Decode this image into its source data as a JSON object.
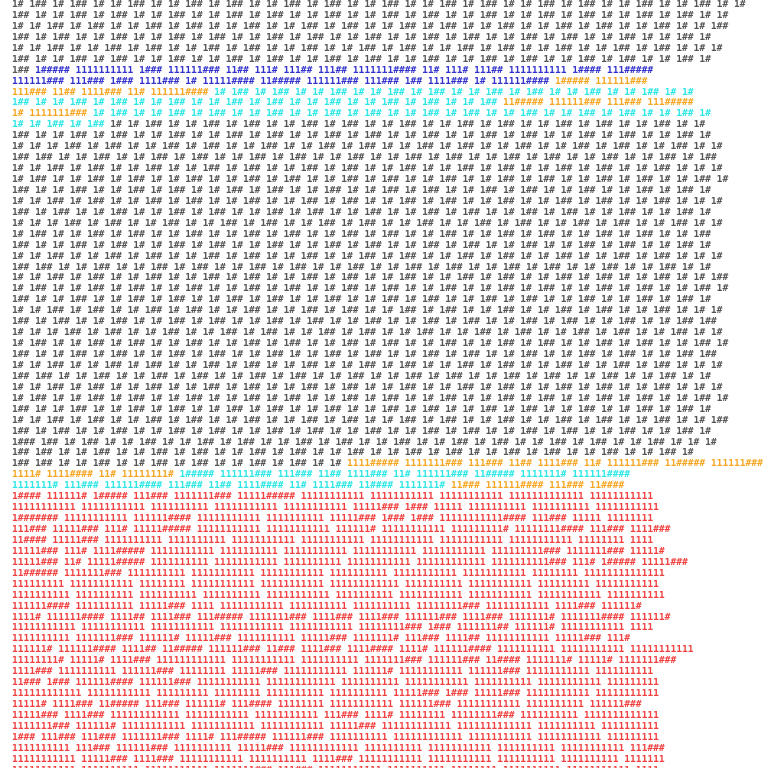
{
  "lines": [
    [
      {
        "text": "1# 1## 1# 1## 1# 1# 1## 1# 1# 1## 1# 1## 1# 1# 1## 1# 1## 1# 1# 1## 1# 1# 1## 1# 1## 1# 1# 1## 1# 1## 1# 1# 1## 1# 1# 1## 1# 1#",
        "color": "#555555"
      }
    ],
    [
      {
        "text": "1## 1# 1# 1## 1# 1## 1# 1# 1## 1# 1# 1## 1# 1## 1# 1# 1## 1# 1# 1## 1# 1## 1# 1# 1## 1# 1# 1## 1# 1## 1# 1# 1## 1# 1## 1# 1#",
        "color": "#555555"
      }
    ],
    [
      {
        "text": "1# 1# 1## 1# 1## 1# 1# 1## 1# 1## 1# 1# 1## 1# 1# 1## 1# 1## 1# 1# 1## 1# 1## 1# 1# 1## 1# 1# 1## 1# 1## 1# 1# 1## 1# 1# 1##",
        "color": "#555555"
      }
    ],
    [
      {
        "text": "1## 1# 1## 1# 1# 1## 1# 1# 1## 1# 1## 1# 1# 1## 1# 1## 1# 1# 1## 1# 1# 1## 1# 1## 1# 1# 1## 1# 1## 1# 1# 1## 1# 1# 1## 1#",
        "color": "#555555"
      }
    ],
    [
      {
        "text": "1# 1# 1## 1# 1# 1## 1# 1## 1# 1# 1## 1# 1## 1# 1# 1## 1# 1# 1## 1# 1## 1# 1# 1## 1# 1## 1# 1# 1## 1# 1# 1## 1# 1## 1# 1# 1#",
        "color": "#555555"
      }
    ],
    [
      {
        "text": "1## 1# 1# 1## 1# 1## 1# 1# 1## 1# 1# 1## 1# 1## 1# 1# 1## 1# 1## 1# 1# 1## 1# 1# 1## 1# 1## 1# 1# 1## 1# 1## 1# 1# 1## 1#",
        "color": "#555555"
      }
    ],
    [
      {
        "text": "1## ",
        "color": "#555555"
      },
      {
        "text": "1##### 1111111111 1### 111111### 11## 111# 111## 111## 1111111#### 11# 111# 111## 1111111111 1#### 111#####",
        "color": "#3333cc"
      }
    ],
    [
      {
        "text": "111111### 111### 1### 1111### 1# 11111#### 11##### 111111### 111### 1## 1111### 1# 111111#### ",
        "color": "#3333cc"
      },
      {
        "text": "1##### 111111###",
        "color": "#f5a623"
      }
    ],
    [
      {
        "text": "111### 11## 1111### 11# 111111#### ",
        "color": "#f5a623"
      },
      {
        "text": "1# 1## 1# 1## 1# 1# 1## 1# 1# 1## 1# 1## 1# 1# 1## 1# 1## 1# 1# 1## 1# 1# 1## 1# 1#",
        "color": "#2ee6e6"
      }
    ],
    [
      {
        "text": "1## 1# 1# 1## 1# 1## 1# 1# 1## 1# 1# 1## 1# 1## 1# 1# 1## 1# 1# 1## 1# 1## 1# 1# 1## ",
        "color": "#2ee6e6"
      },
      {
        "text": "11##### 111111### 111### 111#####",
        "color": "#f5a623"
      }
    ],
    [
      {
        "text": "1# 1111111### ",
        "color": "#f5a623"
      },
      {
        "text": "1# 1## 1# 1# 1## 1# 1## 1# 1# 1## 1# 1# 1## 1# 1## 1# 1# 1## 1# 1## 1# 1# 1## 1# 1# 1## 1# 1## 1# 1# 1## 1#",
        "color": "#2ee6e6"
      }
    ],
    [
      {
        "text": "1# 1# 1## 1# 1## ",
        "color": "#2ee6e6"
      },
      {
        "text": "1# 1# 1## 1# 1# 1## 1# 1## 1# 1# 1## 1# 1## 1# 1# 1## 1# 1# 1## 1# 1## 1# 1# 1## 1# 1## 1# 1# 1## 1# 1#",
        "color": "#555555"
      }
    ],
    [
      {
        "text": "1## 1# 1# 1## 1# 1## 1# 1# 1## 1# 1# 1## 1# 1## 1# 1# 1## 1# 1## 1# 1# 1## 1# 1# 1## 1# 1## 1# 1# 1## 1# 1## 1# 1# 1## 1#",
        "color": "#555555"
      }
    ],
    [
      {
        "text": "1# 1# 1# 1## 1# 1## 1# 1# 1## 1# 1## 1# 1# 1## 1# 1# 1## 1# 1## 1# 1# 1## 1# 1## 1# 1# 1## 1# 1# 1## 1# 1## 1# 1# 1## 1# 1#",
        "color": "#555555"
      }
    ],
    [
      {
        "text": "1## 1## 1# 1# 1## 1# 1# 1## 1# 1## 1# 1# 1## 1# 1## 1# 1# 1## 1# 1# 1## 1# 1## 1# 1# 1## 1# 1## 1# 1# 1## 1# 1# 1## 1# 1##",
        "color": "#555555"
      }
    ],
    [
      {
        "text": "1# 1# 1## 1# 1## 1# 1# 1## 1# 1# 1## 1# 1## 1# 1# 1## 1# 1## 1# 1# 1## 1# 1# 1## 1# 1## 1# 1# 1## 1# 1## 1# 1# 1## 1# 1# 1#",
        "color": "#555555"
      }
    ],
    [
      {
        "text": "1# 1## 1# 1# 1## 1# 1## 1# 1# 1## 1# 1# 1## 1# 1## 1# 1# 1## 1# 1## 1# 1# 1## 1# 1# 1## 1# 1## 1# 1# 1## 1# 1## 1# 1# 1## 1#",
        "color": "#555555"
      }
    ],
    [
      {
        "text": "1## 1# 1# 1## 1# 1# 1## 1# 1## 1# 1# 1## 1# 1## 1# 1# 1## 1# 1# 1## 1# 1## 1# 1# 1## 1# 1## 1# 1# 1## 1# 1# 1## 1# 1## 1#",
        "color": "#555555"
      }
    ],
    [
      {
        "text": "1# 1# 1## 1# 1## 1# 1# 1## 1# 1## 1# 1# 1## 1# 1# 1## 1# 1## 1# 1# 1## 1# 1## 1# 1# 1## 1# 1# 1## 1# 1## 1# 1# 1## 1# 1# 1#",
        "color": "#555555"
      }
    ],
    [
      {
        "text": "1## 1# 1## 1# 1# 1## 1# 1# 1## 1# 1## 1# 1# 1## 1# 1## 1# 1# 1## 1# 1# 1## 1# 1## 1# 1# 1## 1# 1## 1# 1# 1## 1# 1# 1## 1#",
        "color": "#555555"
      }
    ],
    [
      {
        "text": "1# 1# 1# 1## 1# 1## 1# 1# 1## 1# 1# 1## 1# 1## 1# 1# 1## 1# 1## 1# 1# 1## 1# 1# 1## 1# 1## 1# 1# 1## 1# 1## 1# 1# 1## 1# 1#",
        "color": "#555555"
      }
    ],
    [
      {
        "text": "1# 1## 1# 1# 1## 1# 1## 1# 1# 1## 1# 1# 1## 1# 1## 1# 1# 1## 1# 1## 1# 1# 1## 1# 1# 1## 1# 1## 1# 1# 1## 1# 1## 1# 1# 1##",
        "color": "#555555"
      }
    ],
    [
      {
        "text": "1## 1# 1# 1## 1# 1## 1# 1# 1## 1# 1## 1# 1# 1## 1# 1# 1## 1# 1## 1# 1# 1## 1# 1## 1# 1# 1## 1# 1# 1## 1# 1## 1# 1# 1## 1#",
        "color": "#555555"
      }
    ],
    [
      {
        "text": "1# 1# 1## 1# 1# 1## 1# 1## 1# 1# 1## 1# 1## 1# 1# 1## 1# 1# 1## 1# 1## 1# 1# 1## 1# 1## 1# 1# 1## 1# 1# 1## 1# 1## 1# 1# 1#",
        "color": "#555555"
      }
    ],
    [
      {
        "text": "1## 1## 1# 1# 1## 1# 1# 1## 1# 1## 1# 1# 1## 1# 1## 1# 1# 1## 1# 1# 1## 1# 1## 1# 1# 1## 1# 1## 1# 1# 1## 1# 1# 1## 1# 1#",
        "color": "#555555"
      }
    ],
    [
      {
        "text": "1# 1# 1## 1# 1## 1# 1# 1## 1# 1# 1## 1# 1## 1# 1# 1## 1# 1## 1# 1# 1## 1# 1# 1## 1# 1## 1# 1# 1## 1# 1## 1# 1# 1## 1# 1# 1##",
        "color": "#555555"
      }
    ],
    [
      {
        "text": "1# 1## 1# 1# 1## 1# 1## 1# 1# 1## 1# 1# 1## 1# 1## 1# 1# 1## 1# 1## 1# 1# 1## 1# 1# 1## 1# 1## 1# 1# 1## 1# 1## 1# 1# 1## 1#",
        "color": "#555555"
      }
    ],
    [
      {
        "text": "1## 1# 1# 1## 1# 1# 1## 1# 1## 1# 1# 1## 1# 1## 1# 1# 1## 1# 1# 1## 1# 1## 1# 1# 1## 1# 1## 1# 1# 1## 1# 1# 1## 1# 1## 1#",
        "color": "#555555"
      }
    ],
    [
      {
        "text": "1# 1# 1## 1# 1## 1# 1# 1## 1# 1## 1# 1# 1## 1# 1# 1## 1# 1## 1# 1# 1## 1# 1## 1# 1# 1## 1# 1# 1## 1# 1## 1# 1# 1## 1# 1# 1#",
        "color": "#555555"
      }
    ],
    [
      {
        "text": "1## 1# 1## 1# 1# 1## 1# 1# 1## 1# 1## 1# 1# 1## 1# 1## 1# 1# 1## 1# 1# 1## 1# 1## 1# 1# 1## 1# 1## 1# 1# 1## 1# 1# 1## 1##",
        "color": "#555555"
      }
    ],
    [
      {
        "text": "1# 1# 1# 1## 1# 1## 1# 1# 1## 1# 1# 1## 1# 1## 1# 1# 1## 1# 1## 1# 1# 1## 1# 1# 1## 1# 1## 1# 1# 1## 1# 1## 1# 1# 1## 1# 1#",
        "color": "#555555"
      }
    ],
    [
      {
        "text": "1# 1## 1# 1# 1## 1# 1## 1# 1# 1## 1# 1# 1## 1# 1## 1# 1# 1## 1# 1## 1# 1# 1## 1# 1# 1## 1# 1## 1# 1# 1## 1# 1## 1# 1# 1## 1#",
        "color": "#555555"
      }
    ],
    [
      {
        "text": "1## 1# 1# 1## 1# 1## 1# 1# 1## 1# 1## 1# 1# 1## 1# 1# 1## 1# 1## 1# 1# 1## 1# 1## 1# 1# 1## 1# 1# 1## 1# 1## 1# 1# 1## 1##",
        "color": "#555555"
      }
    ],
    [
      {
        "text": "1# 1# 1## 1# 1# 1## 1# 1## 1# 1# 1## 1# 1## 1# 1# 1## 1# 1# 1## 1# 1## 1# 1# 1## 1# 1## 1# 1# 1## 1# 1# 1## 1# 1## 1# 1# 1#",
        "color": "#555555"
      }
    ],
    [
      {
        "text": "1## 1## 1# 1# 1## 1# 1# 1## 1# 1## 1# 1# 1## 1# 1## 1# 1# 1## 1# 1# 1## 1# 1## 1# 1# 1## 1# 1## 1# 1# 1## 1# 1# 1## 1# 1#",
        "color": "#555555"
      }
    ],
    [
      {
        "text": "1# 1# 1## 1# 1## 1# 1# 1## 1# 1# 1## 1# 1## 1# 1# 1## 1# 1## 1# 1# 1## 1# 1# 1## 1# 1## 1# 1# 1## 1# 1## 1# 1# 1## 1# 1# 1#",
        "color": "#555555"
      }
    ],
    [
      {
        "text": "1# 1## 1# 1# 1## 1# 1## 1# 1# 1## 1# 1# 1## 1# 1## 1# 1# 1## 1# 1## 1# 1# 1## 1# 1# 1## 1# 1## 1# 1# 1## 1# 1## 1# 1# 1## 1#",
        "color": "#555555"
      }
    ],
    [
      {
        "text": "1## 1# 1# 1## 1# 1# 1## 1# 1## 1# 1# 1## 1# 1## 1# 1# 1## 1# 1# 1## 1# 1## 1# 1# 1## 1# 1## 1# 1# 1## 1# 1# 1## 1# 1## 1#",
        "color": "#555555"
      }
    ],
    [
      {
        "text": "1# 1# 1## 1# 1## 1# 1# 1## 1# 1## 1# 1# 1## 1# 1# 1## 1# 1## 1# 1# 1## 1# 1## 1# 1# 1## 1# 1# 1## 1# 1## 1# 1# 1## 1# 1# 1##",
        "color": "#555555"
      }
    ],
    [
      {
        "text": "1## 1# 1## 1# 1# 1## 1# 1# 1## 1# 1## 1# 1# 1## 1# 1## 1# 1# 1## 1# 1# 1## 1# 1## 1# 1# 1## 1# 1## 1# 1# 1## 1# 1# 1## 1#",
        "color": "#555555"
      }
    ],
    [
      {
        "text": "1### 1## 1# 1## 1# 1# 1## 1# 1# 1## 1# 1## 1# 1# 1## 1# 1## 1# 1# 1## 1# 1# 1## 1# 1## 1# 1# 1## 1# 1## 1# 1# 1## 1# 1# 1#",
        "color": "#555555"
      }
    ],
    [
      {
        "text": "1## 1## 1# 1# 1## 1# 1# 1## 1# 1## 1# 1# 1## 1# 1## 1# 1# 1## 1# 1# 1## 1# 1## 1# 1# 1## 1# 1## 1# 1# 1## 1# 1# 1## 1#",
        "color": "#555555"
      }
    ],
    [
      {
        "text": "1## 1## 1# 1# 1## 1# 1# 1## 1# 1## 1# 1# 1## 1# 1## 1# 1# ",
        "color": "#555555"
      },
      {
        "text": "1111##### 1111111### 111### 11## 1111### 11# 111111### 11##### 111111### 111###",
        "color": "#f5a623"
      }
    ],
    [
      {
        "text": "1111# 1111#### 11# 11111111# ",
        "color": "#f5a623"
      },
      {
        "text": "1##### 111111### 111### 11## 1111### 11# 111111### 11##### 1111111# 111111####",
        "color": "#2ee6e6"
      }
    ],
    [
      {
        "text": "1111111# 111### 111111#### 111### 11## 1111#### 11# 1111### 11#### 1111111# ",
        "color": "#2ee6e6"
      },
      {
        "text": "11### 111111#### 111### 11####",
        "color": "#f5a623"
      }
    ],
    [
      {
        "text": "1#### 111111# 1##### 111### 1111111### 11111##### 11111111111 11111111111 11111111111 1111111111111 11111111111",
        "color": "#f04040"
      }
    ],
    [
      {
        "text": "11111111111 11111111111 1111111111 11111111111 11111111111 11111### 1### 11111 1111111111 1111111111 11111111111",
        "color": "#f04040"
      }
    ],
    [
      {
        "text": "1####### 11111111111 111111#### 11111111111 1111111111 11111### 1### 1### 11111111111#### 111### 11111 11111111",
        "color": "#f04040"
      }
    ],
    [
      {
        "text": "111### 11111### 111# 11111##### 11111111111 11111111111 111111# 11111111111 111111111# 11111111#### 111### 1111###",
        "color": "#f04040"
      }
    ],
    [
      {
        "text": "11#### 11111### 1111111111 1111111111 11111111111 11111111111 11111111111 11111111111 11111111111 11111111 1111",
        "color": "#f04040"
      }
    ],
    [
      {
        "text": "11111### 111# 1111##### 11111111111 1111111111 11111111111 11111111111 11111111111 111111111### 1111111### 11111#",
        "color": "#f04040"
      }
    ],
    [
      {
        "text": "11111### 11# 11111##### 1111111111 11111111111 1111111111 11111111111 111111111111 1111111111### 111# 1##### 11111###",
        "color": "#f04040"
      }
    ],
    [
      {
        "text": "11###### 1111111### 1111111111 11111111111 11111111111 1111111111 11111111111 11111111111 11111111 11111111111111",
        "color": "#f04040"
      }
    ],
    [
      {
        "text": "111111111 11111111111 11111111 11111111111 11111111111 111111111111 1111111111 11111111111 111111111 11111111111",
        "color": "#f04040"
      }
    ],
    [
      {
        "text": "1111111111 1111111111 1111111111 1111111111 11111111111 1111111111 11111111111 11111111111 11111111111 1111111111",
        "color": "#f04040"
      }
    ],
    [
      {
        "text": "111111#### 1111111111 11111### 1111 11111111111 1111111111 1111111111 11111111### 11111111111 1111### 111111#",
        "color": "#f04040"
      }
    ],
    [
      {
        "text": "1111# 111111#### 1111## 1111### 111##### 1111111### 1111### 1111### 111111### 1111### 1111111# 1111111#### 111111#",
        "color": "#f04040"
      }
    ],
    [
      {
        "text": "11111111111 11111111111 11111111111 11111111111 11111111111 11111111### 1### 1111111## 111111# 11111111111 1111",
        "color": "#f04040"
      }
    ],
    [
      {
        "text": "1111111111 1111111### 111111# 11111### 1111111111 11111### 1111111# 111### 1111## 11111111111 11111### 111#",
        "color": "#f04040"
      }
    ],
    [
      {
        "text": "111111# 111111#### 1111## 11##### 111111### 11### 1111### 1111#### 1111# 111111#### 1111111111 11111111111 11111111111",
        "color": "#f04040"
      }
    ],
    [
      {
        "text": "11111111# 11111# 1111### 111111111111 11111111111 1111111111 1111111### 111111### 11#### 1111111# 11111# 1111111###",
        "color": "#f04040"
      }
    ],
    [
      {
        "text": "1111### 1111111111 111111### 11111111 11111### 11111111111 111111# 11111111111 111111### 11111111111 1111111111",
        "color": "#f04040"
      }
    ],
    [
      {
        "text": "11### 1### 111111#### 111111### 11111111111 111111111111 1111111111 11111111111 1111111111 11111111111 111111111",
        "color": "#f04040"
      }
    ],
    [
      {
        "text": "111111111111 11111111111 111111111 11111111 1111111111 1111111111 11111### 1### 11111### 11111111111 11111111111",
        "color": "#f04040"
      }
    ],
    [
      {
        "text": "11111# 1111### 11##### 111### 111111# 111#### 11111111 11111111111 111111### 11111111111 1111111111 111111###",
        "color": "#f04040"
      }
    ],
    [
      {
        "text": "11111### 1111### 111111111111 11111111111 11111111111 111### 1111# 11111111 11111111### 1111111111 1111111111111",
        "color": "#f04040"
      }
    ],
    [
      {
        "text": "1111111### 111111# 11111111111 11111111111 11111111111 11111### 111111111111 1111111111111 1111111111 1111111111",
        "color": "#f04040"
      }
    ],
    [
      {
        "text": "1### 111### 111### 1111111### 1111# 111##### 111111### 1111111111 111111111111 11111111111 11111111111 111111111",
        "color": "#f04040"
      }
    ],
    [
      {
        "text": "1111111111 111### 111111### 1111111111 11111### 111111111111 1111111111 11111111111 1111111111 11111111111 111###",
        "color": "#f04040"
      }
    ],
    [
      {
        "text": "11111111111 11111### 1111### 11111111111 1111111111 1111### 11111111111 11111111111 1111111111 1111111111 1111111",
        "color": "#f04040"
      }
    ],
    [
      {
        "text": "11111111111 1111111111 11111111111 1111111### 111### 11111111111 1111111111 11111111 1111111111 11111111111 1111",
        "color": "#f04040"
      }
    ]
  ]
}
